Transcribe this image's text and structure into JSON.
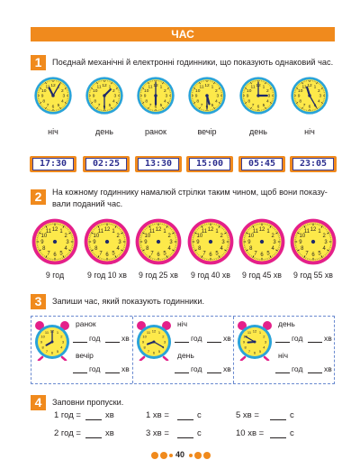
{
  "header": {
    "title": "ЧАС"
  },
  "task1": {
    "number": "1",
    "text": "Поєднай механічні й електронні годинники, що показують однаковий час.",
    "clocks": [
      {
        "label": "ніч",
        "h": 11,
        "m": 5
      },
      {
        "label": "день",
        "h": 1,
        "m": 30
      },
      {
        "label": "ранок",
        "h": 6,
        "m": 0
      },
      {
        "label": "вечір",
        "h": 5,
        "m": 30
      },
      {
        "label": "день",
        "h": 3,
        "m": 0
      },
      {
        "label": "ніч",
        "h": 11,
        "m": 25
      }
    ],
    "digital": [
      "17:30",
      "02:25",
      "13:30",
      "15:00",
      "05:45",
      "23:05"
    ]
  },
  "task2": {
    "number": "2",
    "text_line1": "На кожному годиннику намалюй стрілки таким чином, щоб вони показу-",
    "text_line2": "вали поданий час.",
    "labels": [
      "9 год",
      "9 год 10 хв",
      "9 год 25 хв",
      "9 год 40 хв",
      "9 год 45 хв",
      "9 год 55 хв"
    ]
  },
  "task3": {
    "number": "3",
    "text": "Запиши час, який показують годинники.",
    "panels": [
      {
        "top": "ранок",
        "bottom": "вечір",
        "h": 8,
        "m": 0
      },
      {
        "top": "ніч",
        "bottom": "день",
        "h": 8,
        "m": 20
      },
      {
        "top": "день",
        "bottom": "ніч",
        "h": 8,
        "m": 50
      }
    ],
    "unit_h": "год",
    "unit_m": "хв"
  },
  "task4": {
    "number": "4",
    "text": "Заповни пропуски.",
    "rows": [
      [
        "1 год =",
        "хв",
        "1 хв =",
        "с",
        "5 хв =",
        "с"
      ],
      [
        "2 год =",
        "хв",
        "3 хв =",
        "с",
        "10 хв =",
        "с"
      ]
    ]
  },
  "page_number": "40",
  "colors": {
    "accent": "#f08a1d",
    "clock_face": "#fde94a",
    "clock1_rim": "#2aa3d8",
    "clock2_rim": "#e4208a"
  }
}
